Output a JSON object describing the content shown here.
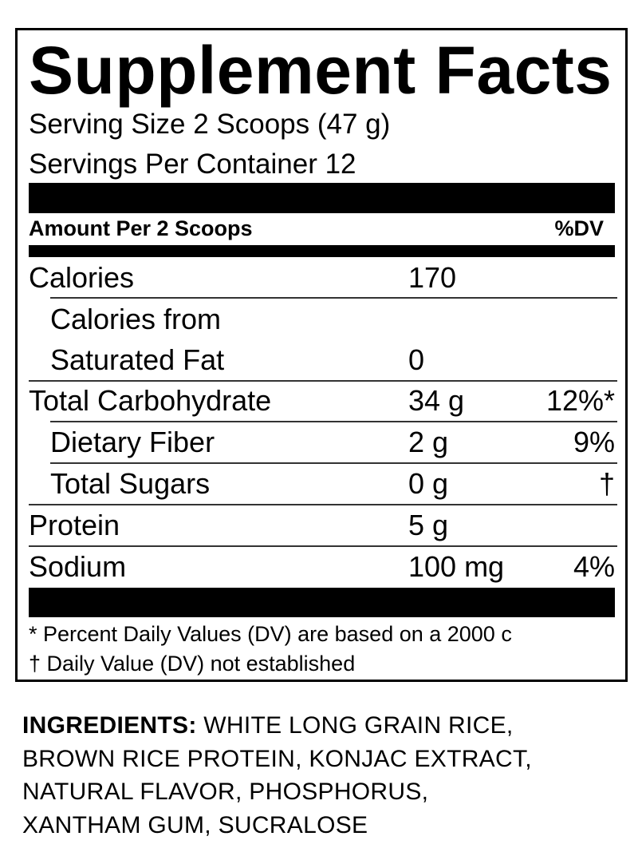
{
  "panel": {
    "title": "Supplement Facts",
    "serving_size": "Serving Size 2 Scoops (47 g)",
    "servings_per_container": "Servings Per Container 12",
    "amount_header": "Amount Per 2 Scoops",
    "dv_header": "%DV",
    "rows": [
      {
        "label": "Calories",
        "amount": "170",
        "dv": ""
      },
      {
        "label": "Calories from",
        "label2": "Saturated Fat",
        "amount": "0",
        "dv": ""
      },
      {
        "label": "Total Carbohydrate",
        "amount": "34 g",
        "dv": "12%*"
      },
      {
        "label": "Dietary Fiber",
        "amount": "2 g",
        "dv": "9%"
      },
      {
        "label": "Total Sugars",
        "amount": "0 g",
        "dv": "†"
      },
      {
        "label": "Protein",
        "amount": "5 g",
        "dv": ""
      },
      {
        "label": "Sodium",
        "amount": "100 mg",
        "dv": "4%"
      }
    ],
    "footnotes": [
      "* Percent Daily Values (DV) are based on a 2000 c",
      "† Daily Value (DV) not established"
    ]
  },
  "ingredients": {
    "label": "INGREDIENTS:",
    "lines": [
      " WHITE LONG GRAIN RICE,",
      "BROWN RICE PROTEIN, KONJAC EXTRACT,",
      "NATURAL FLAVOR, PHOSPHORUS,",
      "XANTHAM GUM, SUCRALOSE"
    ]
  }
}
